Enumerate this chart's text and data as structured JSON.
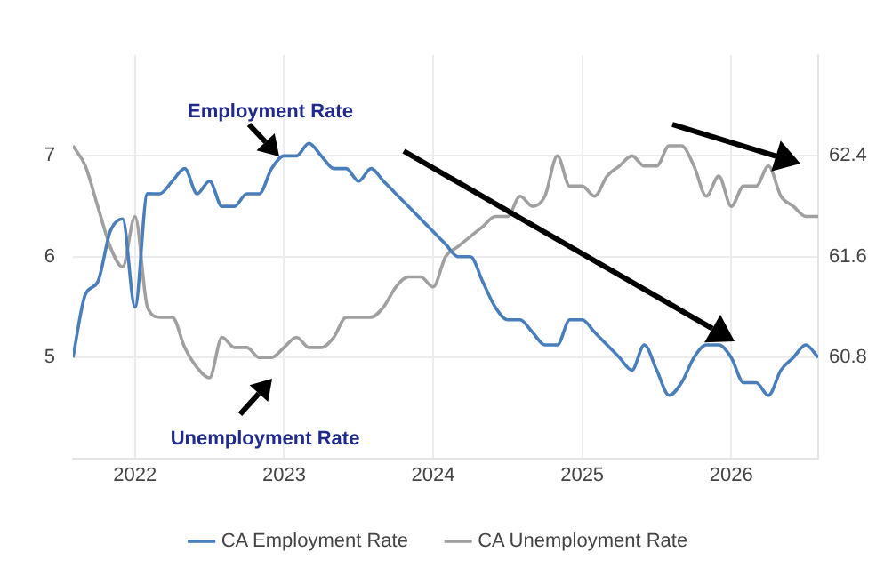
{
  "chart_data": {
    "type": "line",
    "x": [
      "2021-08",
      "2021-09",
      "2021-10",
      "2021-11",
      "2021-12",
      "2022-01",
      "2022-02",
      "2022-03",
      "2022-04",
      "2022-05",
      "2022-06",
      "2022-07",
      "2022-08",
      "2022-09",
      "2022-10",
      "2022-11",
      "2022-12",
      "2023-01",
      "2023-02",
      "2023-03",
      "2023-04",
      "2023-05",
      "2023-06",
      "2023-07",
      "2023-08",
      "2023-09",
      "2023-10",
      "2023-11",
      "2023-12",
      "2024-01",
      "2024-02",
      "2024-03",
      "2024-04",
      "2024-05",
      "2024-06",
      "2024-07",
      "2024-08",
      "2024-09",
      "2024-10",
      "2024-11",
      "2024-12",
      "2025-01",
      "2025-02",
      "2025-03",
      "2025-04",
      "2025-05",
      "2025-06",
      "2025-07",
      "2025-08",
      "2025-09",
      "2025-10",
      "2025-11",
      "2025-12",
      "2026-01",
      "2026-02",
      "2026-03",
      "2026-04",
      "2026-05",
      "2026-06",
      "2026-07",
      "2026-08"
    ],
    "series": [
      {
        "name": "CA Employment Rate",
        "color": "#4a7ebb",
        "axis": "y2",
        "values": [
          60.8,
          61.3,
          61.4,
          61.8,
          61.9,
          61.2,
          62.1,
          62.1,
          62.2,
          62.3,
          62.1,
          62.2,
          62.0,
          62.0,
          62.1,
          62.1,
          62.3,
          62.4,
          62.4,
          62.5,
          62.4,
          62.3,
          62.3,
          62.2,
          62.3,
          62.2,
          62.1,
          62.0,
          61.9,
          61.8,
          61.7,
          61.6,
          61.6,
          61.4,
          61.2,
          61.1,
          61.1,
          61.0,
          60.9,
          60.9,
          61.1,
          61.1,
          61.0,
          60.9,
          60.8,
          60.7,
          60.9,
          60.7,
          60.5,
          60.6,
          60.8,
          60.9,
          60.9,
          60.8,
          60.6,
          60.6,
          60.5,
          60.7,
          60.8,
          60.9,
          60.8
        ]
      },
      {
        "name": "CA Unemployment Rate",
        "color": "#a0a0a0",
        "values": [
          7.1,
          6.9,
          6.5,
          6.1,
          5.9,
          6.4,
          5.5,
          5.4,
          5.4,
          5.1,
          4.9,
          4.8,
          5.2,
          5.1,
          5.1,
          5.0,
          5.0,
          5.1,
          5.2,
          5.1,
          5.1,
          5.2,
          5.4,
          5.4,
          5.4,
          5.5,
          5.7,
          5.8,
          5.8,
          5.7,
          6.0,
          6.1,
          6.2,
          6.3,
          6.4,
          6.4,
          6.6,
          6.5,
          6.6,
          7.0,
          6.7,
          6.7,
          6.6,
          6.8,
          6.9,
          7.0,
          6.9,
          6.9,
          7.1,
          7.1,
          6.9,
          6.6,
          6.8,
          6.5,
          6.7,
          6.7,
          6.9,
          6.6,
          6.5,
          6.4,
          6.4
        ]
      }
    ],
    "xlim": [
      "2021-08",
      "2026-08"
    ],
    "xticks": [
      "2022",
      "2023",
      "2024",
      "2025",
      "2026"
    ],
    "ylim": [
      4,
      8
    ],
    "yticks": [
      5,
      6,
      7
    ],
    "y2lim": [
      60.0,
      63.2
    ],
    "y2ticks": [
      60.8,
      61.6,
      62.4
    ],
    "annotations": [
      "Employment Rate",
      "Unemployment Rate"
    ],
    "grid": true,
    "legend": "bottom"
  }
}
